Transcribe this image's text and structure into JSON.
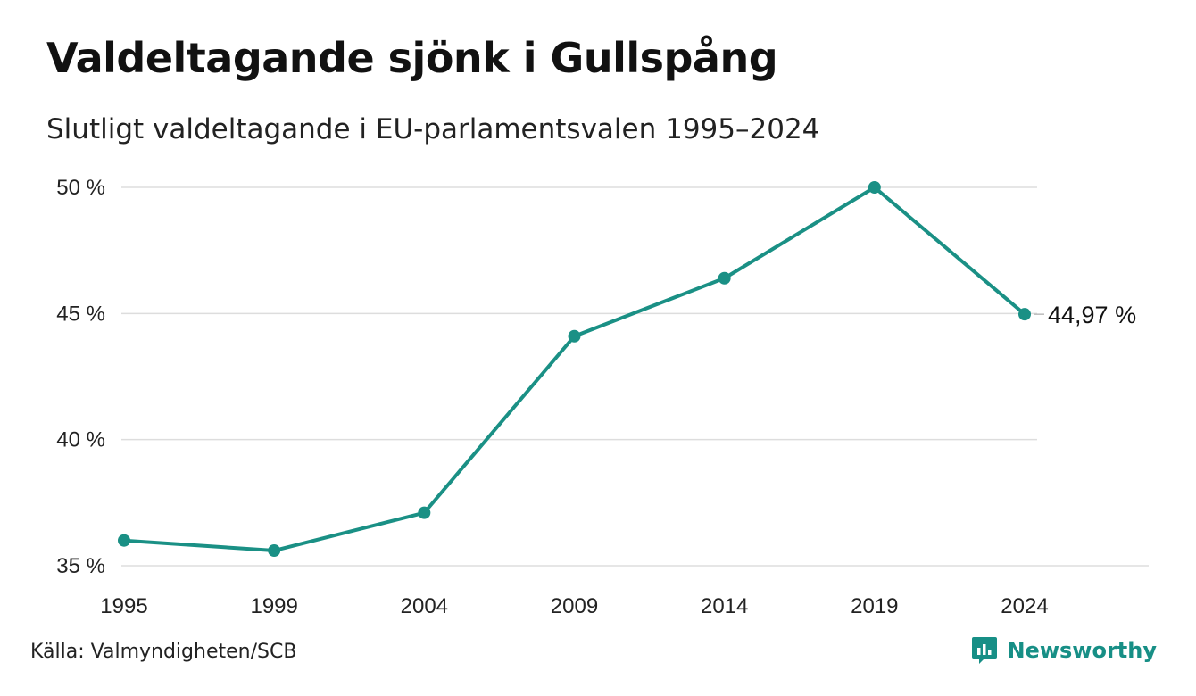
{
  "header": {
    "title": "Valdeltagande sjönk i Gullspång",
    "subtitle": "Slutligt valdeltagande i EU-parlamentsvalen 1995–2024"
  },
  "footer": {
    "source": "Källa: Valmyndigheten/SCB",
    "brand": "Newsworthy",
    "brand_icon": "newsworthy-logo-icon"
  },
  "colors": {
    "line": "#1a9085",
    "grid": "#dddddd",
    "brand": "#178f86"
  },
  "chart_data": {
    "type": "line",
    "x": [
      "1995",
      "1999",
      "2004",
      "2009",
      "2014",
      "2019",
      "2024"
    ],
    "series": [
      {
        "values": [
          36.0,
          35.6,
          37.1,
          44.1,
          46.4,
          50.0,
          44.97
        ]
      }
    ],
    "yticks": [
      35,
      40,
      45,
      50
    ],
    "ytick_labels": [
      "35 %",
      "40 %",
      "45 %",
      "50 %"
    ],
    "ylim": [
      35,
      50
    ],
    "grid": true,
    "end_label": "44,97 %"
  }
}
